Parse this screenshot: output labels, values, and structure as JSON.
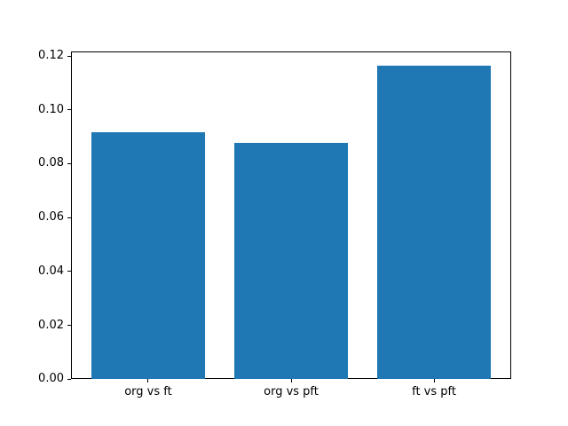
{
  "chart_data": {
    "type": "bar",
    "categories": [
      "org vs ft",
      "org vs pft",
      "ft vs pft"
    ],
    "values": [
      0.0918,
      0.0877,
      0.1164
    ],
    "title": "",
    "xlabel": "",
    "ylabel": "",
    "ylim": [
      0,
      0.1218
    ],
    "xlim": [
      -0.54,
      2.54
    ],
    "yticks": [
      0.0,
      0.02,
      0.04,
      0.06,
      0.08,
      0.1,
      0.12
    ],
    "ytick_labels": [
      "0.00",
      "0.02",
      "0.04",
      "0.06",
      "0.08",
      "0.10",
      "0.12"
    ],
    "bar_width_fraction": 0.8,
    "bar_color": "#1f77b4",
    "grid": false,
    "legend_position": "none",
    "spine_color": "#000000",
    "background_color": "#ffffff"
  }
}
